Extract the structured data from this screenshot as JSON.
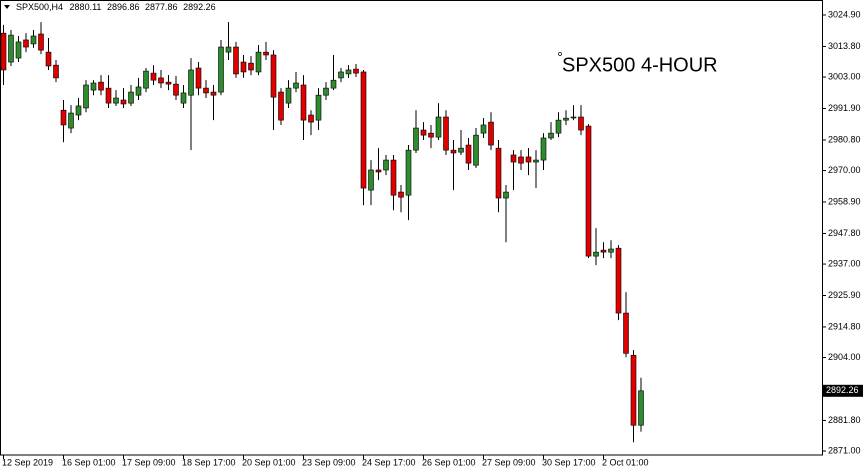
{
  "chart_data": {
    "type": "candlestick",
    "symbol": "SPX500,H4",
    "title": "SPX500 4-HOUR",
    "up_color": "#2e8b2e",
    "down_color": "#e00000",
    "categories": [
      "12 Sep 2019",
      null,
      null,
      null,
      null,
      null,
      null,
      null,
      "16 Sep 01:00",
      null,
      null,
      null,
      null,
      null,
      null,
      null,
      "17 Sep 09:00",
      null,
      null,
      null,
      null,
      null,
      null,
      null,
      "18 Sep 17:00",
      null,
      null,
      null,
      null,
      null,
      null,
      null,
      "20 Sep 01:00",
      null,
      null,
      null,
      null,
      null,
      null,
      null,
      "23 Sep 09:00",
      null,
      null,
      null,
      null,
      null,
      null,
      null,
      "24 Sep 17:00",
      null,
      null,
      null,
      null,
      null,
      null,
      null,
      "26 Sep 01:00",
      null,
      null,
      null,
      null,
      null,
      null,
      null,
      "27 Sep 09:00",
      null,
      null,
      null,
      null,
      null,
      null,
      null,
      "30 Sep 17:00",
      null,
      null,
      null,
      null,
      null,
      null,
      null,
      "2 Oct 01:00",
      null,
      null,
      null,
      null,
      null
    ],
    "open": [
      3018.5,
      3008.3,
      3009.7,
      3016.1,
      3014.7,
      3018.2,
      3011.8,
      3007.2,
      2991.3,
      2985.0,
      2989.6,
      2992.1,
      2998.4,
      3001.2,
      2999.1,
      2993.8,
      2994.9,
      2993.8,
      2996.6,
      2999.1,
      3004.4,
      3002.7,
      3001.2,
      3000.5,
      2993.8,
      2996.6,
      3006.2,
      2999.1,
      2997.7,
      2997.7,
      3011.8,
      3013.6,
      3008.3,
      3007.9,
      3004.8,
      3011.8,
      3010.8,
      2997.7,
      2993.8,
      2999.1,
      3000.2,
      2989.6,
      2987.8,
      2996.6,
      2999.1,
      3002.7,
      3004.1,
      3005.8,
      3004.8,
      2963.1,
      2970.2,
      2970.2,
      2973.7,
      2962.4,
      2961.3,
      2977.2,
      2984.3,
      2983.2,
      2981.8,
      2988.9,
      2977.2,
      2976.5,
      2979.0,
      2971.9,
      2983.2,
      2987.1,
      2977.9,
      2960.3,
      2975.5,
      2974.8,
      2974.8,
      2973.0,
      2973.7,
      2981.5,
      2983.2,
      2987.8,
      2988.9,
      2988.9,
      2985.7,
      2939.8,
      2941.9,
      2941.2,
      2942.6,
      2919.7,
      2904.8,
      2880.11
    ],
    "high": [
      3021.4,
      3019.6,
      3017.5,
      3018.5,
      3019.6,
      3022.4,
      3016.8,
      3009.0,
      2994.9,
      2993.1,
      2995.6,
      3001.9,
      3001.9,
      3003.7,
      3003.7,
      2998.4,
      2999.1,
      3000.2,
      3002.7,
      3006.2,
      3007.2,
      3005.5,
      3003.7,
      3003.4,
      3000.2,
      3009.7,
      3008.3,
      3001.9,
      3000.2,
      3016.1,
      3022.4,
      3015.4,
      3010.8,
      3010.4,
      3014.3,
      3015.4,
      3012.5,
      2999.1,
      3001.9,
      3004.8,
      3003.7,
      2991.3,
      2999.1,
      3001.2,
      3010.8,
      3006.2,
      3007.2,
      3007.6,
      3005.5,
      2973.7,
      2977.9,
      2975.5,
      2975.5,
      2964.9,
      2979.0,
      2991.3,
      2987.1,
      2986.1,
      2993.8,
      2991.3,
      2980.8,
      2984.3,
      2981.5,
      2985.0,
      2988.5,
      2990.6,
      2980.8,
      2964.9,
      2977.2,
      2977.2,
      2977.9,
      2977.2,
      2983.2,
      2987.1,
      2990.6,
      2991.3,
      2993.1,
      2993.1,
      2986.4,
      2949.7,
      2944.7,
      2945.4,
      2943.7,
      2927.1,
      2906.6,
      2896.86
    ],
    "low": [
      3000.2,
      3006.9,
      3008.3,
      3011.8,
      3013.3,
      3011.1,
      3005.5,
      3001.2,
      2980.0,
      2983.2,
      2987.8,
      2990.6,
      2996.6,
      2996.6,
      2992.1,
      2992.8,
      2992.1,
      2992.8,
      2994.9,
      2997.7,
      3000.2,
      2999.1,
      2998.4,
      2994.9,
      2992.1,
      2977.2,
      2996.6,
      2995.6,
      2987.8,
      2996.6,
      3009.0,
      3002.7,
      3002.7,
      3003.7,
      3003.7,
      3009.0,
      2984.3,
      2986.1,
      2992.1,
      2997.7,
      2980.8,
      2982.5,
      2984.3,
      2994.9,
      2998.4,
      3001.2,
      3002.7,
      3003.0,
      2957.8,
      2957.8,
      2966.6,
      2968.4,
      2956.0,
      2955.3,
      2952.5,
      2976.2,
      2980.8,
      2977.9,
      2980.8,
      2975.5,
      2963.1,
      2975.5,
      2970.2,
      2970.9,
      2981.5,
      2977.2,
      2955.3,
      2944.7,
      2963.1,
      2970.2,
      2968.4,
      2963.8,
      2970.2,
      2980.8,
      2981.8,
      2986.1,
      2987.8,
      2982.5,
      2939.1,
      2936.6,
      2939.1,
      2939.1,
      2917.2,
      2904.1,
      2874.1,
      2877.86
    ],
    "close": [
      3005.5,
      3017.8,
      3015.4,
      3013.6,
      3017.5,
      3012.5,
      3006.9,
      3002.7,
      2986.1,
      2990.3,
      2992.8,
      3000.2,
      3000.9,
      2998.4,
      2993.8,
      2995.6,
      2993.5,
      2997.7,
      2999.5,
      3005.1,
      3001.9,
      3000.9,
      3000.5,
      2996.6,
      2997.4,
      3005.5,
      2999.1,
      2997.4,
      2996.6,
      3013.6,
      3013.6,
      3004.1,
      3004.8,
      3005.5,
      3011.8,
      3010.8,
      2995.9,
      2987.8,
      2999.1,
      3000.9,
      2987.8,
      2987.1,
      2996.6,
      2999.1,
      3001.9,
      3004.8,
      3005.5,
      3004.4,
      2963.8,
      2970.2,
      2969.5,
      2973.7,
      2961.3,
      2960.6,
      2977.2,
      2985.0,
      2982.5,
      2981.8,
      2988.9,
      2977.2,
      2976.2,
      2977.9,
      2972.6,
      2982.5,
      2986.1,
      2979.0,
      2960.3,
      2962.4,
      2973.0,
      2972.6,
      2973.0,
      2973.7,
      2981.5,
      2983.2,
      2987.8,
      2988.5,
      2988.9,
      2984.3,
      2939.8,
      2941.2,
      2941.2,
      2942.3,
      2919.7,
      2905.5,
      2880.1,
      2892.26
    ],
    "ylim": [
      2869.6,
      3030.2
    ],
    "yticks": [
      {
        "value": 3024.9,
        "label": "3024.90"
      },
      {
        "value": 3013.8,
        "label": "3013.80"
      },
      {
        "value": 3003,
        "label": "3003.00"
      },
      {
        "value": 2991.9,
        "label": "2991.90"
      },
      {
        "value": 2980.8,
        "label": "2980.80"
      },
      {
        "value": 2970,
        "label": "2970.00"
      },
      {
        "value": 2958.9,
        "label": "2958.90"
      },
      {
        "value": 2947.8,
        "label": "2947.80"
      },
      {
        "value": 2937,
        "label": "2937.00"
      },
      {
        "value": 2925.9,
        "label": "2925.90"
      },
      {
        "value": 2914.8,
        "label": "2914.80"
      },
      {
        "value": 2904,
        "label": "2904.00"
      },
      {
        "value": 2881.8,
        "label": "2881.80"
      },
      {
        "value": 2871,
        "label": "2871.00"
      }
    ],
    "grid": false
  }
}
